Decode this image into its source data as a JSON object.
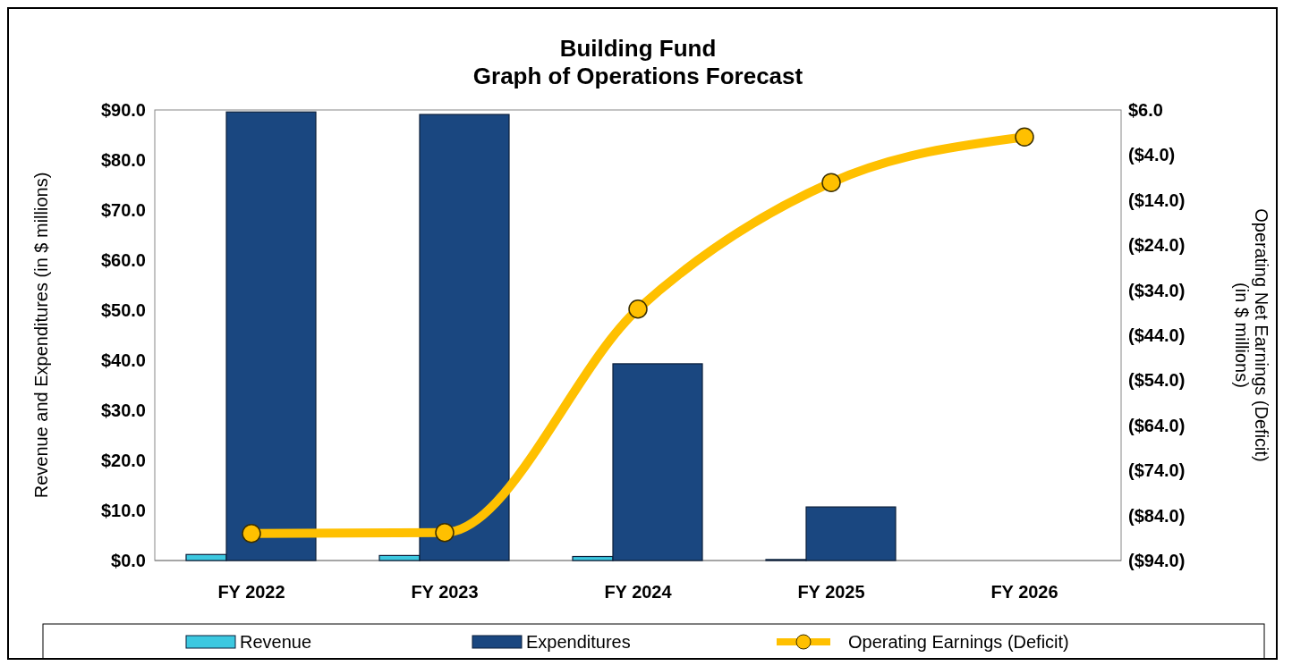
{
  "chart_data": {
    "type": "bar",
    "title": "Building Fund\nGraph of Operations Forecast",
    "ylabel": "Revenue and Expenditures (in $ millions)",
    "y2label": "Operating Net Earnings (Deficit)\n(in $ millions)",
    "categories": [
      "FY 2022",
      "FY 2023",
      "FY 2024",
      "FY 2025",
      "FY 2026"
    ],
    "series": [
      {
        "name": "Revenue",
        "color": "#3cc8e0",
        "values": [
          1.2,
          1.0,
          0.8,
          0.2,
          0
        ]
      },
      {
        "name": "Expenditures",
        "color": "#1a4780",
        "values": [
          89.6,
          89.1,
          39.3,
          10.7,
          0
        ]
      },
      {
        "name": "Operating Earnings (Deficit)",
        "type": "line",
        "axis": "y2",
        "color": "#ffc000",
        "marker": "circle",
        "values": [
          -88.0,
          -87.8,
          -38.2,
          -10.1,
          0.0
        ]
      }
    ],
    "ylim": [
      0,
      90
    ],
    "yticks": [
      {
        "value": 0,
        "label": "$0.0"
      },
      {
        "value": 10,
        "label": "$10.0"
      },
      {
        "value": 20,
        "label": "$20.0"
      },
      {
        "value": 30,
        "label": "$30.0"
      },
      {
        "value": 40,
        "label": "$40.0"
      },
      {
        "value": 50,
        "label": "$50.0"
      },
      {
        "value": 60,
        "label": "$60.0"
      },
      {
        "value": 70,
        "label": "$70.0"
      },
      {
        "value": 80,
        "label": "$80.0"
      },
      {
        "value": 90,
        "label": "$90.0"
      }
    ],
    "y2lim": [
      -94,
      6
    ],
    "y2ticks": [
      {
        "value": -94,
        "label": "($94.0)"
      },
      {
        "value": -84,
        "label": "($84.0)"
      },
      {
        "value": -74,
        "label": "($74.0)"
      },
      {
        "value": -64,
        "label": "($64.0)"
      },
      {
        "value": -54,
        "label": "($54.0)"
      },
      {
        "value": -44,
        "label": "($44.0)"
      },
      {
        "value": -34,
        "label": "($34.0)"
      },
      {
        "value": -24,
        "label": "($24.0)"
      },
      {
        "value": -14,
        "label": "($14.0)"
      },
      {
        "value": -4,
        "label": "($4.0)"
      },
      {
        "value": 6,
        "label": "$6.0"
      }
    ],
    "grid": false,
    "legend": "bottom"
  }
}
